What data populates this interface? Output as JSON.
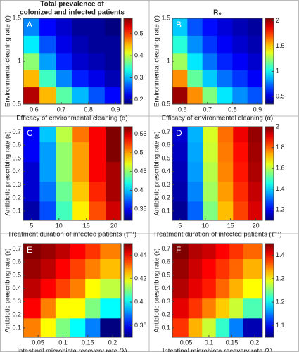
{
  "chart_data": [
    {
      "type": "heatmap",
      "letter": "A",
      "title": [
        "Total prevalence of",
        "colonized and infected patients"
      ],
      "xlabel": "Efficacy of environmental cleaning (α)",
      "ylabel": "Environmental cleaning rate (r)",
      "x": [
        0.59,
        0.65,
        0.71,
        0.77,
        0.83,
        0.89
      ],
      "y": [
        0.6,
        0.8,
        1.0,
        1.2,
        1.4
      ],
      "z": [
        [
          0.55,
          0.45,
          0.36,
          0.3,
          0.26,
          0.23
        ],
        [
          0.45,
          0.35,
          0.28,
          0.24,
          0.22,
          0.2
        ],
        [
          0.38,
          0.29,
          0.24,
          0.21,
          0.2,
          0.19
        ],
        [
          0.32,
          0.26,
          0.22,
          0.2,
          0.19,
          0.19
        ],
        [
          0.28,
          0.23,
          0.21,
          0.19,
          0.19,
          0.18
        ]
      ],
      "xlim": [
        0.56,
        0.92
      ],
      "ylim": [
        0.5,
        1.5
      ],
      "xticks": [
        0.6,
        0.7,
        0.8,
        0.9
      ],
      "yticks": [
        0.5,
        1,
        1.5
      ],
      "clim": [
        0.18,
        0.57
      ],
      "cticks": [
        0.2,
        0.3,
        0.4,
        0.5
      ]
    },
    {
      "type": "heatmap",
      "letter": "B",
      "title": [
        "R₀"
      ],
      "xlabel": "Efficacy of environmental cleaning (α)",
      "ylabel": "Environmental cleaning rate (r)",
      "x": [
        0.59,
        0.65,
        0.71,
        0.77,
        0.83,
        0.89
      ],
      "y": [
        0.6,
        0.8,
        1.0,
        1.2,
        1.4
      ],
      "z": [
        [
          2.0,
          1.6,
          1.2,
          0.95,
          0.8,
          0.7
        ],
        [
          1.6,
          1.15,
          0.9,
          0.75,
          0.65,
          0.55
        ],
        [
          1.25,
          0.95,
          0.75,
          0.62,
          0.55,
          0.48
        ],
        [
          1.05,
          0.8,
          0.65,
          0.55,
          0.48,
          0.43
        ],
        [
          0.9,
          0.7,
          0.58,
          0.5,
          0.44,
          0.4
        ]
      ],
      "xlim": [
        0.56,
        0.92
      ],
      "ylim": [
        0.5,
        1.5
      ],
      "xticks": [
        0.6,
        0.7,
        0.8,
        0.9
      ],
      "yticks": [
        0.5,
        1,
        1.5
      ],
      "clim": [
        0.35,
        2.05
      ],
      "cticks": [
        0.5,
        1,
        1.5,
        2
      ]
    },
    {
      "type": "heatmap",
      "letter": "C",
      "xlabel": "Treatment duration of infected patients (τ⁻¹)",
      "ylabel": "Antibiotic prescribing rate (ε)",
      "x": [
        5,
        8,
        11,
        14,
        17,
        20
      ],
      "y": [
        0.1,
        0.25,
        0.4,
        0.55,
        0.7
      ],
      "z": [
        [
          0.33,
          0.37,
          0.43,
          0.48,
          0.52,
          0.55
        ],
        [
          0.34,
          0.38,
          0.44,
          0.49,
          0.53,
          0.56
        ],
        [
          0.34,
          0.39,
          0.45,
          0.5,
          0.54,
          0.56
        ],
        [
          0.35,
          0.39,
          0.45,
          0.5,
          0.54,
          0.57
        ],
        [
          0.35,
          0.4,
          0.46,
          0.51,
          0.54,
          0.57
        ]
      ],
      "xlim": [
        3.5,
        21.3
      ],
      "ylim": [
        0.03,
        0.74
      ],
      "xticks": [
        5,
        10,
        15,
        20
      ],
      "yticks": [
        0.1,
        0.2,
        0.3,
        0.4,
        0.5,
        0.6,
        0.7
      ],
      "clim": [
        0.32,
        0.57
      ],
      "cticks": [
        0.35,
        0.4,
        0.45,
        0.5,
        0.55
      ]
    },
    {
      "type": "heatmap",
      "letter": "D",
      "xlabel": "Treatment duration of infected patients (τ⁻¹)",
      "ylabel": "Antibiotic prescribing rate (ε)",
      "x": [
        5,
        8,
        11,
        14,
        17,
        20
      ],
      "y": [
        0.1,
        0.25,
        0.4,
        0.55,
        0.7
      ],
      "z": [
        [
          1.12,
          1.3,
          1.55,
          1.72,
          1.83,
          1.92
        ],
        [
          1.14,
          1.33,
          1.58,
          1.75,
          1.85,
          1.94
        ],
        [
          1.15,
          1.35,
          1.6,
          1.77,
          1.87,
          1.96
        ],
        [
          1.16,
          1.36,
          1.62,
          1.78,
          1.88,
          1.97
        ],
        [
          1.17,
          1.37,
          1.63,
          1.79,
          1.9,
          1.98
        ]
      ],
      "xlim": [
        3.5,
        21.3
      ],
      "ylim": [
        0.03,
        0.74
      ],
      "xticks": [
        5,
        10,
        15,
        20
      ],
      "yticks": [
        0.1,
        0.2,
        0.3,
        0.4,
        0.5,
        0.6,
        0.7
      ],
      "clim": [
        1.1,
        2.0
      ],
      "cticks": [
        1.2,
        1.4,
        1.6,
        1.8,
        2
      ]
    },
    {
      "type": "heatmap",
      "letter": "E",
      "xlabel": "Intestinal microbiota recovery rate (λ)",
      "ylabel": "Antibiotic prescribing rate (ε)",
      "x": [
        0.04,
        0.07,
        0.1,
        0.13,
        0.16,
        0.19
      ],
      "y": [
        0.1,
        0.25,
        0.4,
        0.55,
        0.7
      ],
      "z": [
        [
          0.43,
          0.42,
          0.41,
          0.4,
          0.39,
          0.37
        ],
        [
          0.44,
          0.43,
          0.42,
          0.42,
          0.41,
          0.4
        ],
        [
          0.445,
          0.44,
          0.435,
          0.43,
          0.42,
          0.415
        ],
        [
          0.448,
          0.445,
          0.44,
          0.435,
          0.43,
          0.425
        ],
        [
          0.45,
          0.448,
          0.445,
          0.44,
          0.436,
          0.43
        ]
      ],
      "xlim": [
        0.02,
        0.217
      ],
      "ylim": [
        0.03,
        0.74
      ],
      "xticks": [
        0.05,
        0.1,
        0.15,
        0.2
      ],
      "yticks": [
        0.1,
        0.2,
        0.3,
        0.4,
        0.5,
        0.6,
        0.7
      ],
      "clim": [
        0.37,
        0.45
      ],
      "cticks": [
        0.38,
        0.4,
        0.42,
        0.44
      ]
    },
    {
      "type": "heatmap",
      "letter": "F",
      "xlabel": "Intestinal microbiota recovery rate (λ)",
      "ylabel": "Antibiotic prescribing rate (ε)",
      "x": [
        0.04,
        0.07,
        0.1,
        0.13,
        0.16,
        0.19
      ],
      "y": [
        0.1,
        0.25,
        0.4,
        0.55,
        0.7
      ],
      "z": [
        [
          1.38,
          1.33,
          1.28,
          1.22,
          1.15,
          1.07
        ],
        [
          1.41,
          1.38,
          1.35,
          1.32,
          1.28,
          1.23
        ],
        [
          1.43,
          1.41,
          1.39,
          1.36,
          1.33,
          1.3
        ],
        [
          1.44,
          1.42,
          1.4,
          1.38,
          1.36,
          1.33
        ],
        [
          1.45,
          1.43,
          1.42,
          1.4,
          1.38,
          1.36
        ]
      ],
      "xlim": [
        0.02,
        0.217
      ],
      "ylim": [
        0.03,
        0.74
      ],
      "xticks": [
        0.05,
        0.1,
        0.15,
        0.2
      ],
      "yticks": [
        0.1,
        0.2,
        0.3,
        0.4,
        0.5,
        0.6,
        0.7
      ],
      "clim": [
        1.05,
        1.45
      ],
      "cticks": [
        1.1,
        1.2,
        1.3,
        1.4
      ]
    }
  ]
}
